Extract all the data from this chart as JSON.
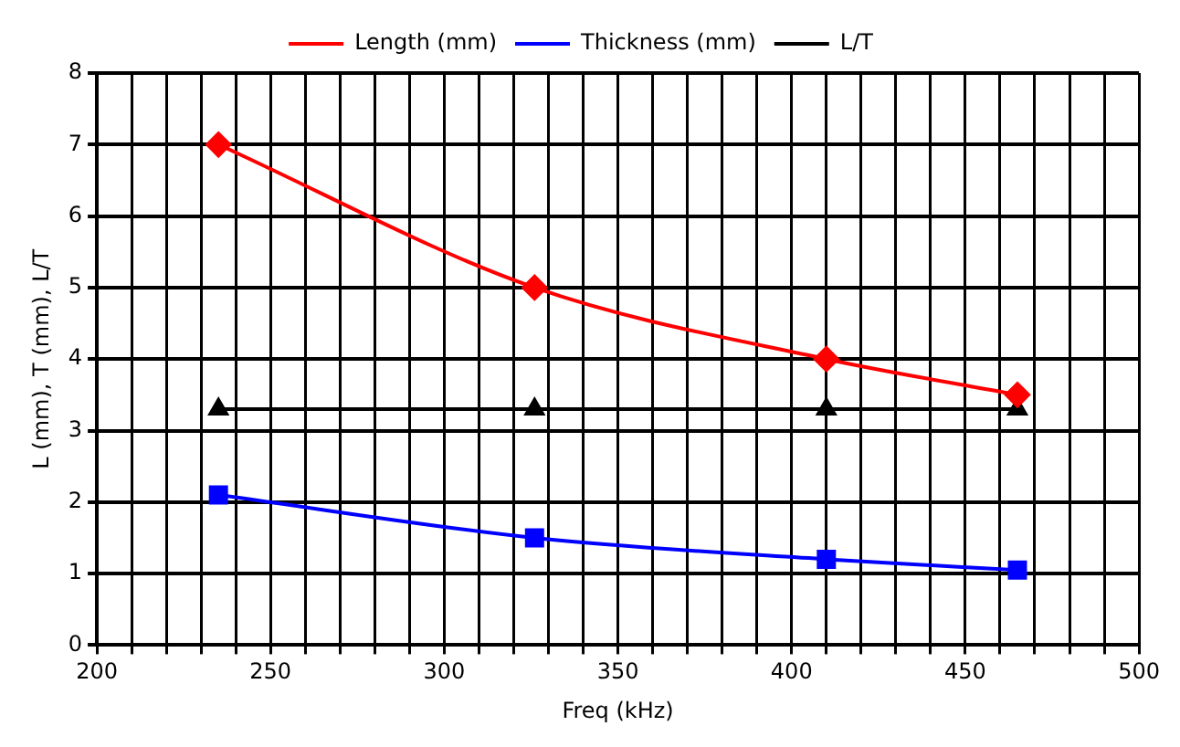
{
  "chart_data": {
    "type": "line",
    "xlabel": "Freq (kHz)",
    "ylabel": "L (mm), T (mm), L/T",
    "x": [
      235,
      326,
      410,
      465
    ],
    "series": [
      {
        "name": "Length (mm)",
        "color": "#ff0000",
        "marker": "diamond",
        "values": [
          7,
          5,
          4,
          3.5
        ]
      },
      {
        "name": "Thickness (mm)",
        "color": "#0000ff",
        "marker": "square",
        "values": [
          2.1,
          1.5,
          1.2,
          1.05
        ]
      },
      {
        "name": "L/T",
        "color": "#000000",
        "marker": "triangle",
        "values": [
          3.3,
          3.3,
          3.3,
          3.3
        ]
      }
    ],
    "xlim": [
      200,
      500
    ],
    "xticks": [
      200,
      {
        "value": 210,
        "label": null
      },
      {
        "value": 220,
        "label": null
      },
      {
        "value": 230,
        "label": null
      },
      {
        "value": 240,
        "label": null
      },
      250,
      {
        "value": 260,
        "label": null
      },
      {
        "value": 270,
        "label": null
      },
      {
        "value": 280,
        "label": null
      },
      {
        "value": 290,
        "label": null
      },
      300,
      {
        "value": 310,
        "label": null
      },
      {
        "value": 320,
        "label": null
      },
      {
        "value": 330,
        "label": null
      },
      {
        "value": 340,
        "label": null
      },
      350,
      {
        "value": 360,
        "label": null
      },
      {
        "value": 370,
        "label": null
      },
      {
        "value": 380,
        "label": null
      },
      {
        "value": 390,
        "label": null
      },
      400,
      {
        "value": 410,
        "label": null
      },
      {
        "value": 420,
        "label": null
      },
      {
        "value": 430,
        "label": null
      },
      {
        "value": 440,
        "label": null
      },
      450,
      {
        "value": 460,
        "label": null
      },
      {
        "value": 470,
        "label": null
      },
      {
        "value": 480,
        "label": null
      },
      {
        "value": 490,
        "label": null
      },
      500
    ],
    "ylim": [
      0,
      8
    ],
    "yticks": [
      0,
      1,
      2,
      3,
      4,
      5,
      6,
      7,
      8
    ],
    "grid": true,
    "legend": "top"
  }
}
